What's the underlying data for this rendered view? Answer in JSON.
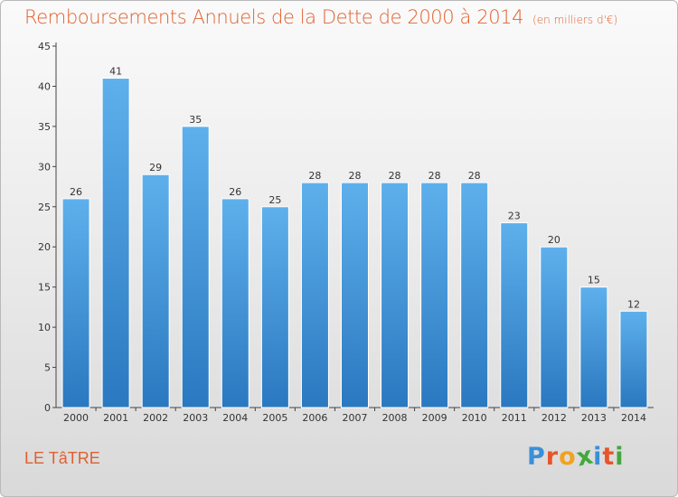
{
  "chart_data": {
    "type": "bar",
    "title": "Remboursements Annuels de la Dette de 2000 à 2014",
    "subtitle": "(en milliers d'€)",
    "categories": [
      "2000",
      "2001",
      "2002",
      "2003",
      "2004",
      "2005",
      "2006",
      "2007",
      "2008",
      "2009",
      "2010",
      "2011",
      "2012",
      "2013",
      "2014"
    ],
    "values": [
      26,
      41,
      29,
      35,
      26,
      25,
      28,
      28,
      28,
      28,
      28,
      23,
      20,
      15,
      12
    ],
    "ylim": [
      0,
      45
    ],
    "yticks": [
      0,
      5,
      10,
      15,
      20,
      25,
      30,
      35,
      40,
      45
    ],
    "data_labels": true,
    "grid": false,
    "bar_color_top": "#5eb0ec",
    "bar_color_bottom": "#2a78c0"
  },
  "footer": {
    "commune": "LE TâTRE",
    "logo_letters": [
      "P",
      "r",
      "o",
      "x",
      "i",
      "t",
      "i"
    ],
    "logo_colors": [
      "#3a8fd8",
      "#e8542a",
      "#f2a21e",
      "#43a83c",
      "#3a8fd8",
      "#e8542a",
      "#43a83c"
    ]
  },
  "colors": {
    "title": "#e0602f",
    "axis": "#444444"
  }
}
